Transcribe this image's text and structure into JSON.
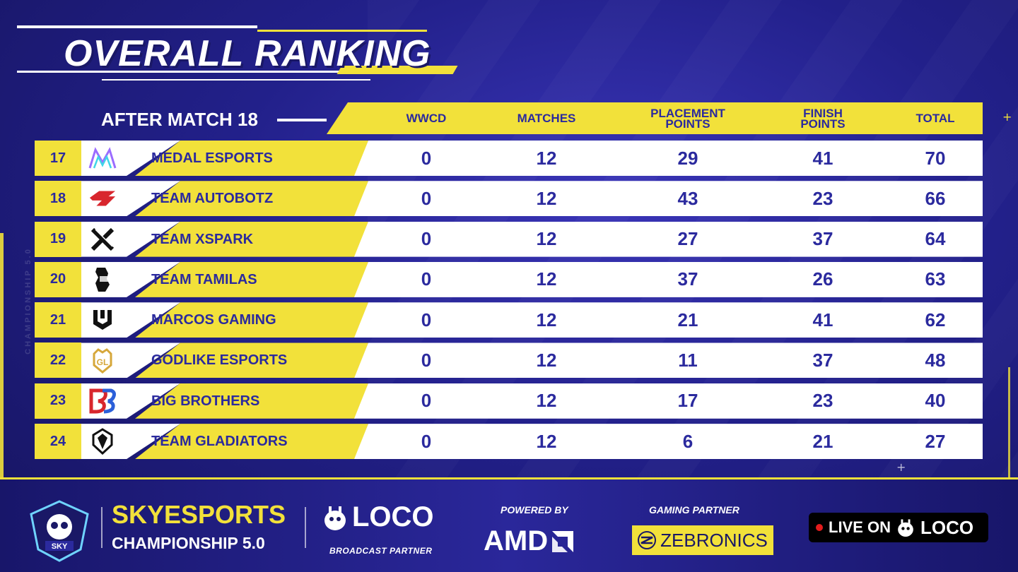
{
  "header": {
    "title": "OVERALL RANKING",
    "subtitle": "AFTER MATCH 18"
  },
  "columns": {
    "wwcd": "WWCD",
    "matches": "MATCHES",
    "placement": "PLACEMENT\nPOINTS",
    "finish": "FINISH\nPOINTS",
    "total": "TOTAL"
  },
  "rows": [
    {
      "rank": "17",
      "team": "MEDAL ESPORTS",
      "logo": "medal-esports-logo",
      "wwcd": "0",
      "matches": "12",
      "placement": "29",
      "finish": "41",
      "total": "70"
    },
    {
      "rank": "18",
      "team": "TEAM AUTOBOTZ",
      "logo": "team-autobotz-logo",
      "wwcd": "0",
      "matches": "12",
      "placement": "43",
      "finish": "23",
      "total": "66"
    },
    {
      "rank": "19",
      "team": "TEAM XSPARK",
      "logo": "team-xspark-logo",
      "wwcd": "0",
      "matches": "12",
      "placement": "27",
      "finish": "37",
      "total": "64"
    },
    {
      "rank": "20",
      "team": "TEAM TAMILAS",
      "logo": "team-tamilas-logo",
      "wwcd": "0",
      "matches": "12",
      "placement": "37",
      "finish": "26",
      "total": "63"
    },
    {
      "rank": "21",
      "team": "MARCOS GAMING",
      "logo": "marcos-gaming-logo",
      "wwcd": "0",
      "matches": "12",
      "placement": "21",
      "finish": "41",
      "total": "62"
    },
    {
      "rank": "22",
      "team": "GODLIKE ESPORTS",
      "logo": "godlike-esports-logo",
      "wwcd": "0",
      "matches": "12",
      "placement": "11",
      "finish": "37",
      "total": "48"
    },
    {
      "rank": "23",
      "team": "BIG BROTHERS",
      "logo": "big-brothers-logo",
      "wwcd": "0",
      "matches": "12",
      "placement": "17",
      "finish": "23",
      "total": "40"
    },
    {
      "rank": "24",
      "team": "TEAM GLADIATORS",
      "logo": "team-gladiators-logo",
      "wwcd": "0",
      "matches": "12",
      "placement": "6",
      "finish": "21",
      "total": "27"
    }
  ],
  "footer": {
    "brand_line1": "SKYESPORTS",
    "brand_line2": "CHAMPIONSHIP 5.0",
    "loco_word": "LOCO",
    "loco_sub": "BROADCAST PARTNER",
    "powered_by": "POWERED BY",
    "amd": "AMD",
    "gaming_partner": "GAMING PARTNER",
    "zebronics": "ZEBRONICS",
    "live_on": "LIVE ON",
    "live_loco": "LOCO"
  },
  "decor": {
    "side_watermark": "CHAMPIONSHIP 5.0",
    "badge_text": "SKY"
  },
  "colors": {
    "accent_yellow": "#f2e13a",
    "text_navy": "#2b2a9e",
    "background": "#22208a",
    "live_red": "#e31c1c"
  }
}
